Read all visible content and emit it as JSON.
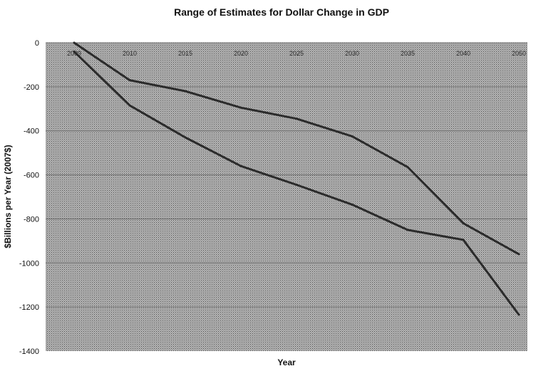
{
  "chart_data": {
    "type": "line",
    "title": "Range of Estimates for Dollar Change in GDP",
    "xlabel": "Year",
    "ylabel": "$Billions per Year (2007$)",
    "categories": [
      "2009",
      "2010",
      "2015",
      "2020",
      "2025",
      "2030",
      "2035",
      "2040",
      "2050"
    ],
    "series": [
      {
        "values": [
          0,
          -170,
          -220,
          -295,
          -345,
          -425,
          -565,
          -820,
          -960
        ]
      },
      {
        "values": [
          -40,
          -285,
          -430,
          -560,
          -645,
          -735,
          -850,
          -895,
          -1235
        ]
      }
    ],
    "ylim": [
      -1400,
      0
    ],
    "yticks": [
      0,
      -200,
      -400,
      -600,
      -800,
      -1000,
      -1200,
      -1400
    ],
    "grid": true,
    "colors": {
      "line": "#2b2b2b",
      "plot_background": "#9a9a9a",
      "grid": "#6f6f6f"
    }
  }
}
